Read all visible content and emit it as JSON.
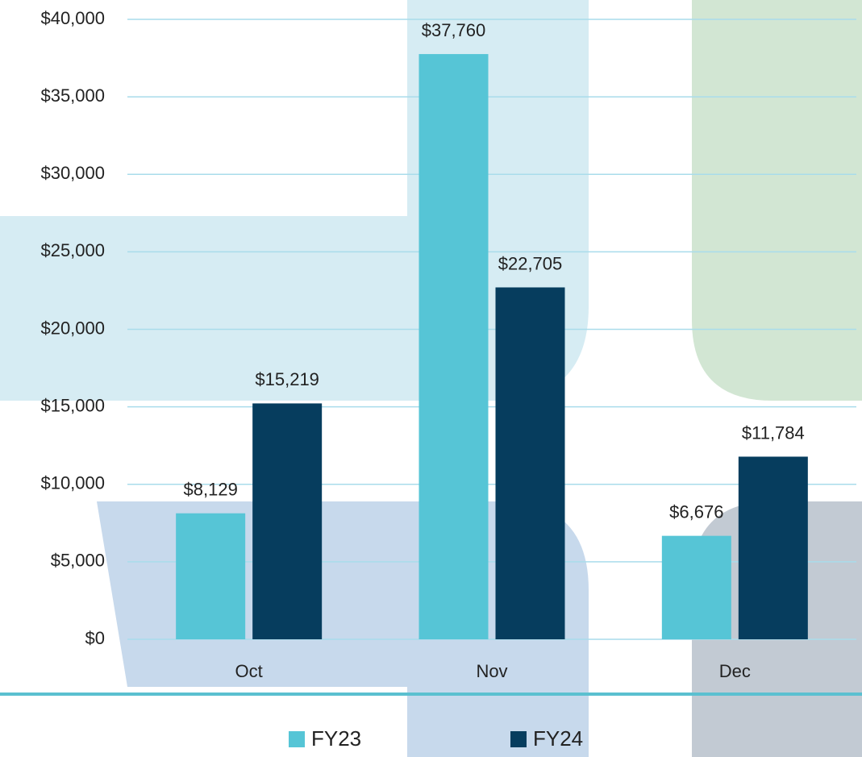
{
  "chart_data": {
    "type": "bar",
    "categories": [
      "Oct",
      "Nov",
      "Dec"
    ],
    "series": [
      {
        "name": "FY23",
        "color": "#56c5d6",
        "values": [
          8129,
          37760,
          6676
        ],
        "value_labels": [
          "$8,129",
          "$37,760",
          "$6,676"
        ]
      },
      {
        "name": "FY24",
        "color": "#063d5e",
        "values": [
          15219,
          22705,
          11784
        ],
        "value_labels": [
          "$15,219",
          "$22,705",
          "$11,784"
        ]
      }
    ],
    "ylim": [
      0,
      40000
    ],
    "yticks": [
      {
        "value": 0,
        "label": "$0"
      },
      {
        "value": 5000,
        "label": "$5,000"
      },
      {
        "value": 10000,
        "label": "$10,000"
      },
      {
        "value": 15000,
        "label": "$15,000"
      },
      {
        "value": 20000,
        "label": "$20,000"
      },
      {
        "value": 25000,
        "label": "$25,000"
      },
      {
        "value": 30000,
        "label": "$30,000"
      },
      {
        "value": 35000,
        "label": "$35,000"
      },
      {
        "value": 40000,
        "label": "$40,000"
      }
    ],
    "grid": true,
    "legend": "bottom"
  }
}
